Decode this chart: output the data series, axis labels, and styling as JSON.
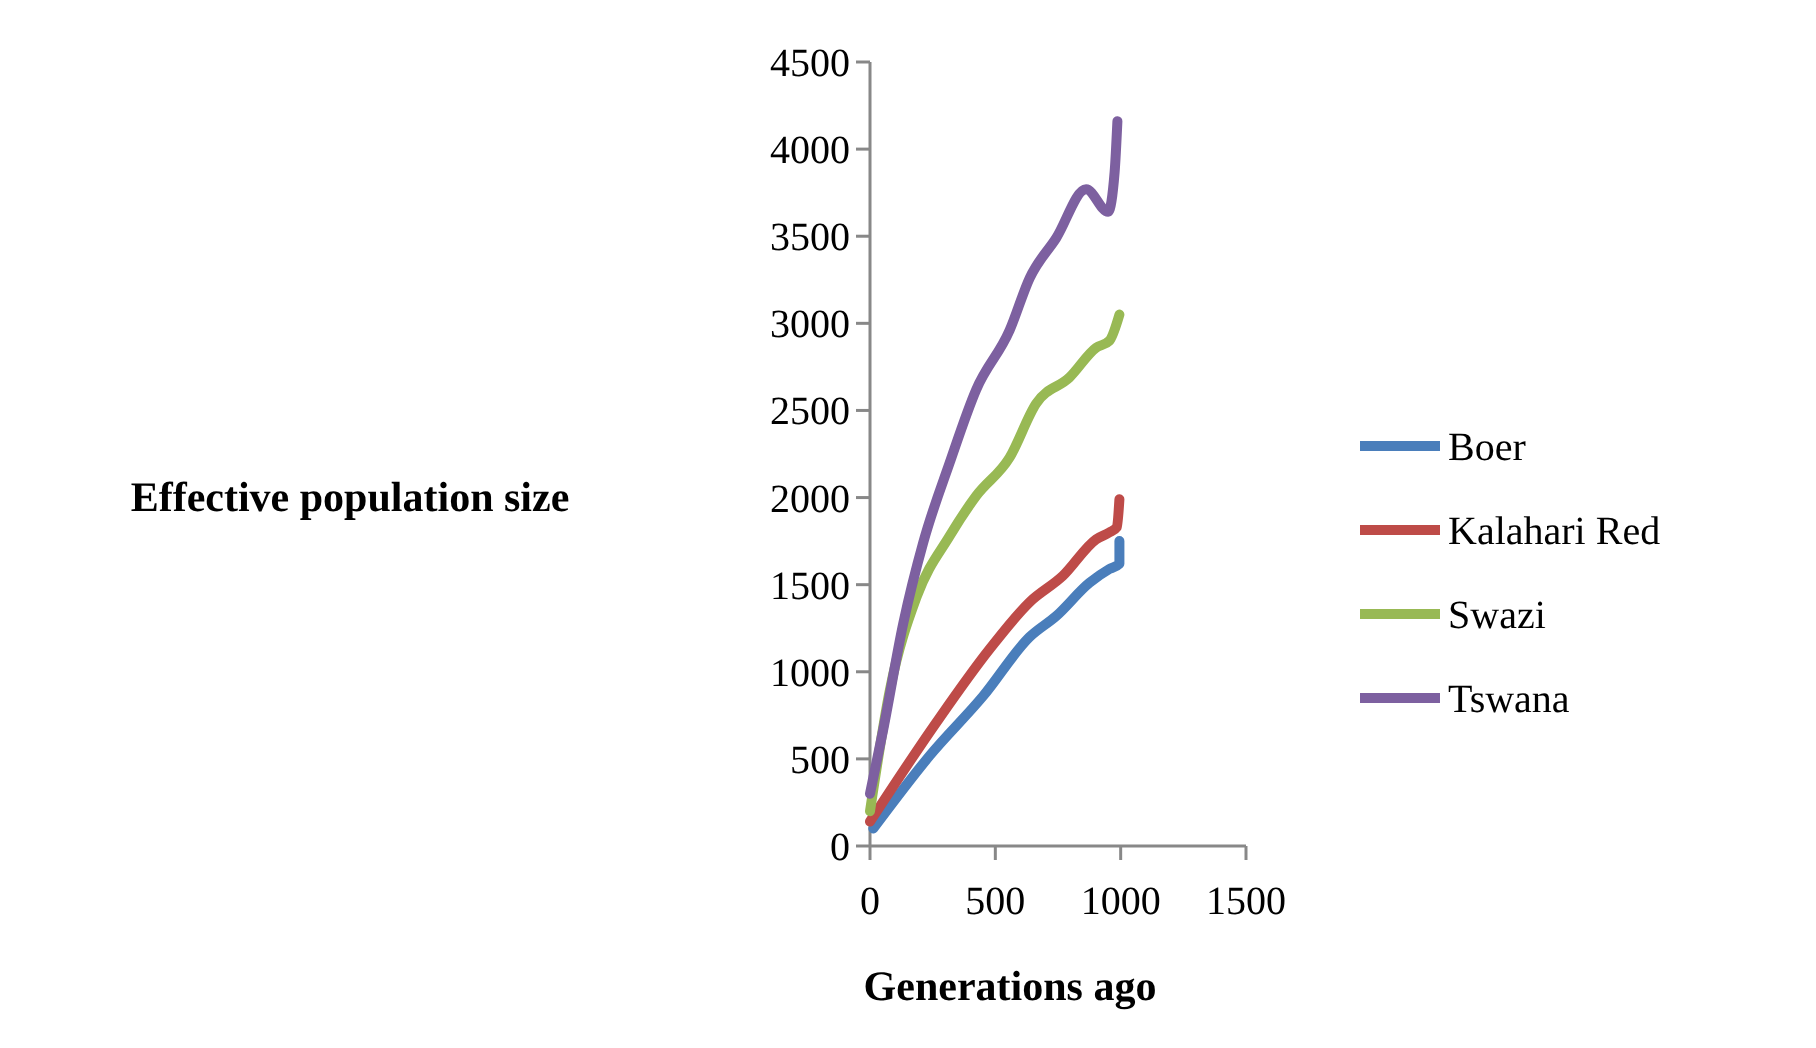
{
  "chart_data": {
    "type": "line",
    "xlabel": "Generations ago",
    "ylabel": "Effective population size",
    "xlim": [
      0,
      1500
    ],
    "xticks": [
      0,
      500,
      1000,
      1500
    ],
    "ylim": [
      0,
      4500
    ],
    "yticks": [
      0,
      500,
      1000,
      1500,
      2000,
      2500,
      3000,
      3500,
      4000,
      4500
    ],
    "legend": "right",
    "grid": false,
    "marker": "none",
    "line_style": "solid",
    "series": [
      {
        "name": "Boer",
        "color": "#4a7ebb",
        "x": [
          13,
          239,
          451,
          637,
          743,
          875,
          955,
          995,
          995
        ],
        "values": [
          100,
          520,
          860,
          1200,
          1320,
          1510,
          1590,
          1620,
          1750
        ]
      },
      {
        "name": "Kalahari Red",
        "color": "#be4b48",
        "x": [
          0,
          265,
          477,
          637,
          769,
          902,
          955,
          985,
          995
        ],
        "values": [
          140,
          710,
          1130,
          1400,
          1550,
          1760,
          1800,
          1830,
          1990
        ]
      },
      {
        "name": "Swazi",
        "color": "#98b954",
        "x": [
          0,
          80,
          186,
          318,
          424,
          557,
          663,
          796,
          902,
          955,
          995
        ],
        "values": [
          200,
          900,
          1430,
          1780,
          2010,
          2230,
          2540,
          2690,
          2860,
          2900,
          3050
        ]
      },
      {
        "name": "Tswana",
        "color": "#7d60a0",
        "x": [
          0,
          53,
          133,
          212,
          318,
          424,
          557,
          637,
          743,
          862,
          950,
          976,
          987
        ],
        "values": [
          300,
          670,
          1280,
          1740,
          2200,
          2620,
          2960,
          3260,
          3490,
          3770,
          3640,
          3870,
          4160
        ]
      }
    ]
  }
}
